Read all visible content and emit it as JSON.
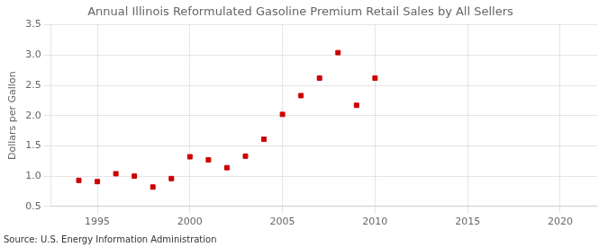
{
  "chart_data": {
    "type": "scatter",
    "title": "Annual Illinois Reformulated Gasoline Premium Retail Sales by All Sellers",
    "y_label": "Dollars per Gallon",
    "annotations": [
      "Source: U.S. Energy Information Administration"
    ],
    "x": [
      1994,
      1995,
      1996,
      1997,
      1998,
      1999,
      2000,
      2001,
      2002,
      2003,
      2004,
      2005,
      2006,
      2007,
      2008,
      2009,
      2010
    ],
    "values": [
      0.93,
      0.91,
      1.04,
      1.0,
      0.82,
      0.96,
      1.32,
      1.27,
      1.14,
      1.33,
      1.61,
      2.02,
      2.33,
      2.62,
      3.04,
      2.17,
      2.62
    ],
    "color": "#cc0000",
    "marker": "square",
    "xlim": [
      1992.5,
      2022
    ],
    "xticks": [
      1995,
      2000,
      2005,
      2010,
      2015,
      2020
    ],
    "ylim": [
      0.5,
      3.5
    ],
    "yticks": [
      0.5,
      {
        "value": 1.0,
        "label": "1.0"
      },
      1.5,
      {
        "value": 2.0,
        "label": "2.0"
      },
      2.5,
      {
        "value": 3.0,
        "label": "3.0"
      },
      3.5
    ],
    "grid": true,
    "legend": false
  }
}
